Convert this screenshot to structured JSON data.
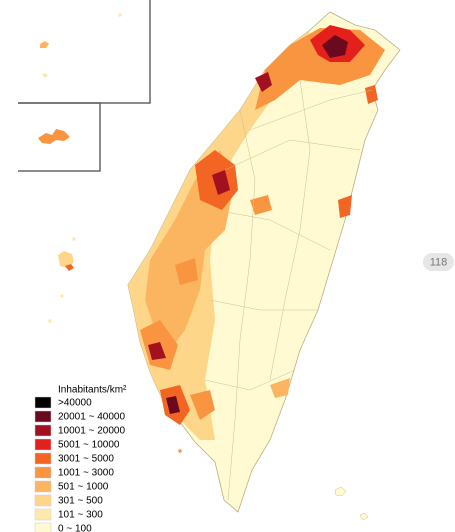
{
  "legend": {
    "title": "Inhabitants/km²",
    "items": [
      {
        "label": ">40000",
        "color": "#000000"
      },
      {
        "label": "20001 ~ 40000",
        "color": "#6b0a1e"
      },
      {
        "label": "10001 ~ 20000",
        "color": "#a3101f"
      },
      {
        "label": "5001 ~ 10000",
        "color": "#e3201c"
      },
      {
        "label": "3001 ~ 5000",
        "color": "#f26522"
      },
      {
        "label": "1001 ~ 3000",
        "color": "#f99440"
      },
      {
        "label": "501 ~ 1000",
        "color": "#fbb560"
      },
      {
        "label": "301 ~ 500",
        "color": "#fdd68a"
      },
      {
        "label": "101 ~ 300",
        "color": "#fee9ac"
      },
      {
        "label": "0 ~ 100",
        "color": "#fffad2"
      }
    ]
  },
  "badge": "118"
}
